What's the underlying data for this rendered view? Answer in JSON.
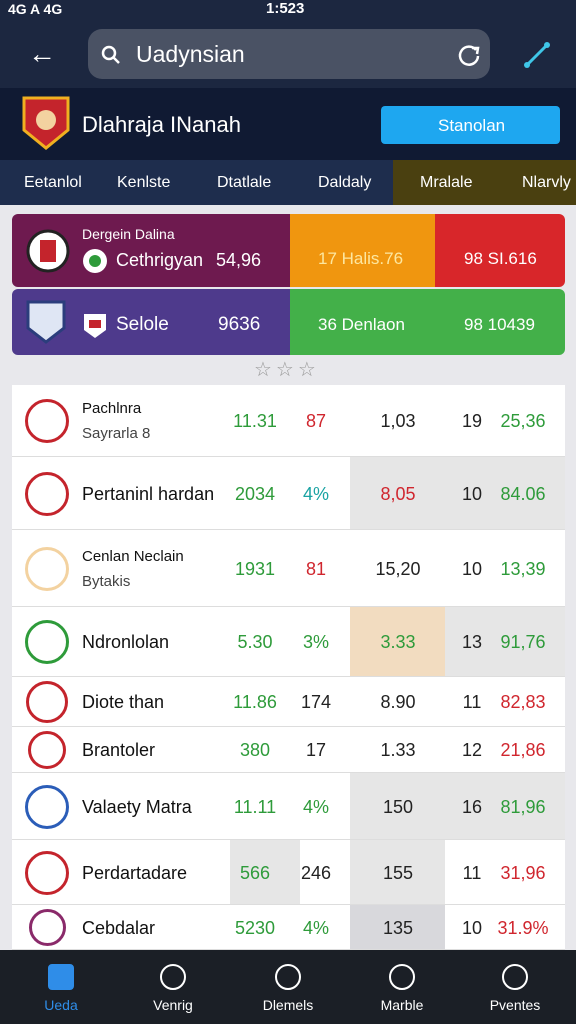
{
  "status_bar": {
    "left": "4G A 4G",
    "time": "1:523"
  },
  "search": {
    "query": "Uadynsian"
  },
  "header": {
    "title": "Dlahraja INanah",
    "button": "Stanolan"
  },
  "tabs": [
    "Eetanlol",
    "Kenlste",
    "Dtatlale",
    "Daldaly",
    "Mralale",
    "Nlarvly"
  ],
  "summary": {
    "cards": [
      {
        "title": "Dergein Dalina",
        "subtitle": "Cethrigyan",
        "value": "54,96",
        "stats": [
          "17 Halis.76",
          "98 SI.616"
        ]
      },
      {
        "subtitle": "Selole",
        "value": "9636",
        "stats": [
          "36 Denlaon",
          "98 10439"
        ]
      }
    ]
  },
  "table": {
    "rows": [
      {
        "name": "Pachlnra",
        "sub": "Sayrarla 8",
        "cells": [
          "11.31",
          "87",
          "1,03",
          "19",
          "25,36"
        ]
      },
      {
        "name": "Pertaninl hardan",
        "cells": [
          "2034",
          "4%",
          "8,05",
          "10",
          "84.06"
        ]
      },
      {
        "name": "Cenlan Neclain",
        "sub": "Bytakis",
        "cells": [
          "1931",
          "81",
          "15,20",
          "10",
          "13,39"
        ]
      },
      {
        "name": "Ndronlolan",
        "cells": [
          "5.30",
          "3%",
          "3.33",
          "13",
          "91,76"
        ]
      },
      {
        "name": "Diote than",
        "cells": [
          "11.86",
          "174",
          "8.90",
          "11",
          "82,83"
        ]
      },
      {
        "name": "Brantoler",
        "cells": [
          "380",
          "17",
          "1.33",
          "12",
          "21,86"
        ]
      },
      {
        "name": "Valaety Matra",
        "cells": [
          "11.11",
          "4%",
          "150",
          "16",
          "81,96"
        ]
      },
      {
        "name": "Perdartadare",
        "cells": [
          "566",
          "246",
          "155",
          "11",
          "31,96"
        ]
      },
      {
        "name": "Cebdalar",
        "cells": [
          "5230",
          "4%",
          "135",
          "10",
          "31.9%"
        ]
      }
    ]
  },
  "nav": [
    "Ueda",
    "Venrig",
    "Dlemels",
    "Marble",
    "Pventes"
  ]
}
